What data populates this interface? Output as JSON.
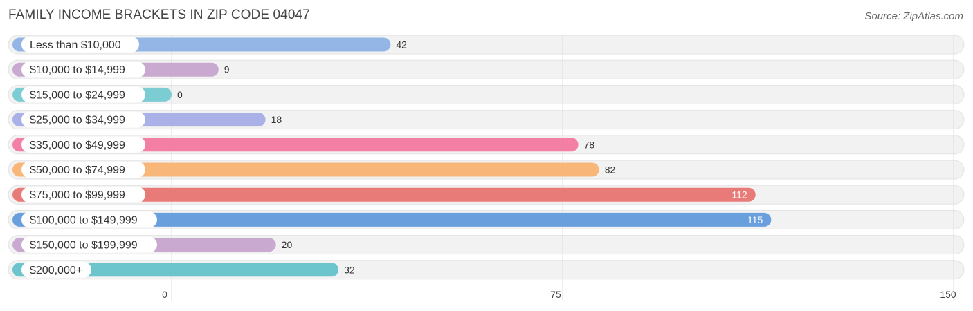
{
  "header": {
    "title": "FAMILY INCOME BRACKETS IN ZIP CODE 04047",
    "source": "Source: ZipAtlas.com"
  },
  "chart_data": {
    "type": "bar",
    "orientation": "horizontal",
    "title": "FAMILY INCOME BRACKETS IN ZIP CODE 04047",
    "xlabel": "",
    "ylabel": "",
    "xlim": [
      0,
      150
    ],
    "ticks": [
      0,
      75,
      150
    ],
    "categories": [
      "Less than $10,000",
      "$10,000 to $14,999",
      "$15,000 to $24,999",
      "$25,000 to $34,999",
      "$35,000 to $49,999",
      "$50,000 to $74,999",
      "$75,000 to $99,999",
      "$100,000 to $149,999",
      "$150,000 to $199,999",
      "$200,000+"
    ],
    "values": [
      42,
      9,
      0,
      18,
      78,
      82,
      112,
      115,
      20,
      32
    ],
    "colors": [
      "#93b6e6",
      "#c9a9cf",
      "#7ccdd3",
      "#a9b1e6",
      "#f47fa4",
      "#f9b679",
      "#e87b77",
      "#6a9fde",
      "#c9a9cf",
      "#6cc4cc"
    ]
  }
}
